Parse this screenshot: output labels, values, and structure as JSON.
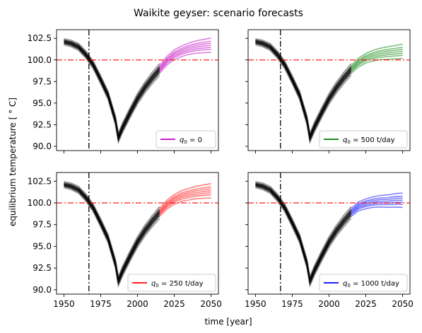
{
  "title": "Waikite geyser: scenario forecasts",
  "xlabel": "time [year]",
  "ylabel": "equilibrium temperature [$^\\circ$C]",
  "ylabel_display": "equilibrium temperature [ ° C]",
  "chart_data": [
    {
      "type": "line",
      "panel": "top-left",
      "legend": {
        "label_math": "q",
        "label_sub": "0",
        "label_rest": " = 0",
        "color": "#bf00bf",
        "placement": "lower right"
      },
      "xlim": [
        1945,
        2055
      ],
      "ylim": [
        89.5,
        103.5
      ],
      "xticks": [
        1950,
        1975,
        2000,
        2025,
        2050
      ],
      "yticks": [
        "90.0",
        "92.5",
        "95.0",
        "97.5",
        "100.0",
        "102.5"
      ],
      "reference_line_y": 100.0,
      "reference_line_x": 1967,
      "history": {
        "x": [
          1950,
          1955,
          1960,
          1965,
          1970,
          1975,
          1980,
          1985,
          1987,
          1990,
          1995,
          2000,
          2005,
          2010,
          2015
        ],
        "y": [
          102.1,
          101.9,
          101.5,
          100.6,
          99.4,
          97.7,
          95.9,
          93.0,
          91.0,
          92.2,
          93.9,
          95.5,
          96.8,
          97.9,
          98.9
        ]
      },
      "forecast": {
        "x": [
          2015,
          2020,
          2025,
          2030,
          2035,
          2040,
          2045,
          2050
        ],
        "y": [
          98.9,
          99.9,
          100.6,
          101.0,
          101.3,
          101.5,
          101.6,
          101.7
        ]
      }
    },
    {
      "type": "line",
      "panel": "top-right",
      "legend": {
        "label_math": "q",
        "label_sub": "0",
        "label_rest": " = 500 t/day",
        "color": "#008000",
        "placement": "lower right"
      },
      "xlim": [
        1945,
        2055
      ],
      "ylim": [
        89.5,
        103.5
      ],
      "xticks": [
        1950,
        1975,
        2000,
        2025,
        2050
      ],
      "yticks": [
        "90.0",
        "92.5",
        "95.0",
        "97.5",
        "100.0",
        "102.5"
      ],
      "reference_line_y": 100.0,
      "reference_line_x": 1967,
      "history": {
        "x": [
          1950,
          1955,
          1960,
          1965,
          1970,
          1975,
          1980,
          1985,
          1987,
          1990,
          1995,
          2000,
          2005,
          2010,
          2015
        ],
        "y": [
          102.1,
          101.9,
          101.5,
          100.6,
          99.4,
          97.7,
          95.9,
          93.0,
          91.0,
          92.2,
          93.9,
          95.5,
          96.8,
          97.9,
          98.9
        ]
      },
      "forecast": {
        "x": [
          2015,
          2020,
          2025,
          2030,
          2035,
          2040,
          2045,
          2050
        ],
        "y": [
          98.9,
          99.7,
          100.2,
          100.5,
          100.7,
          100.8,
          100.9,
          101.0
        ]
      }
    },
    {
      "type": "line",
      "panel": "bottom-left",
      "legend": {
        "label_math": "q",
        "label_sub": "0",
        "label_rest": " = 250 t/day",
        "color": "#ff0000",
        "placement": "lower right"
      },
      "xlim": [
        1945,
        2055
      ],
      "ylim": [
        89.5,
        103.5
      ],
      "xticks": [
        1950,
        1975,
        2000,
        2025,
        2050
      ],
      "yticks": [
        "90.0",
        "92.5",
        "95.0",
        "97.5",
        "100.0",
        "102.5"
      ],
      "reference_line_y": 100.0,
      "reference_line_x": 1967,
      "history": {
        "x": [
          1950,
          1955,
          1960,
          1965,
          1970,
          1975,
          1980,
          1985,
          1987,
          1990,
          1995,
          2000,
          2005,
          2010,
          2015
        ],
        "y": [
          102.1,
          101.9,
          101.5,
          100.6,
          99.4,
          97.7,
          95.9,
          93.0,
          91.0,
          92.2,
          93.9,
          95.5,
          96.8,
          97.9,
          98.9
        ]
      },
      "forecast": {
        "x": [
          2015,
          2020,
          2025,
          2030,
          2035,
          2040,
          2045,
          2050
        ],
        "y": [
          98.9,
          99.8,
          100.4,
          100.8,
          101.0,
          101.2,
          101.3,
          101.4
        ]
      }
    },
    {
      "type": "line",
      "panel": "bottom-right",
      "legend": {
        "label_math": "q",
        "label_sub": "0",
        "label_rest": " = 1000 t/day",
        "color": "#0000ff",
        "placement": "lower right"
      },
      "xlim": [
        1945,
        2055
      ],
      "ylim": [
        89.5,
        103.5
      ],
      "xticks": [
        1950,
        1975,
        2000,
        2025,
        2050
      ],
      "yticks": [
        "90.0",
        "92.5",
        "95.0",
        "97.5",
        "100.0",
        "102.5"
      ],
      "reference_line_y": 100.0,
      "reference_line_x": 1967,
      "history": {
        "x": [
          1950,
          1955,
          1960,
          1965,
          1970,
          1975,
          1980,
          1985,
          1987,
          1990,
          1995,
          2000,
          2005,
          2010,
          2015
        ],
        "y": [
          102.1,
          101.9,
          101.5,
          100.6,
          99.4,
          97.7,
          95.9,
          93.0,
          91.0,
          92.2,
          93.9,
          95.5,
          96.8,
          97.9,
          98.9
        ]
      },
      "forecast": {
        "x": [
          2015,
          2020,
          2025,
          2030,
          2035,
          2040,
          2045,
          2050
        ],
        "y": [
          98.9,
          99.6,
          99.9,
          100.1,
          100.2,
          100.2,
          100.3,
          100.3
        ]
      }
    }
  ]
}
